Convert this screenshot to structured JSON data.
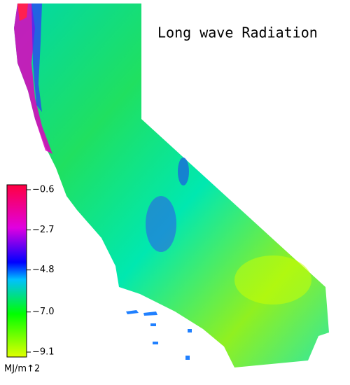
{
  "title": "Long wave Radiation",
  "colorbar": {
    "lim": [
      -9.1,
      -0.6
    ],
    "ticks": [
      {
        "value": -0.6,
        "label": "−0.6"
      },
      {
        "value": -2.7,
        "label": "−2.7"
      },
      {
        "value": -4.8,
        "label": "−4.8"
      },
      {
        "value": -7.0,
        "label": "−7.0"
      },
      {
        "value": -9.1,
        "label": "−9.1"
      }
    ],
    "unit": "MJ/m↑2"
  }
}
